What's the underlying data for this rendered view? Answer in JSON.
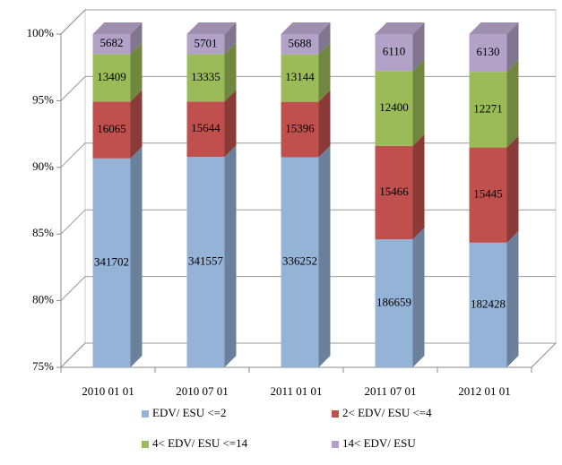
{
  "chart_data": {
    "type": "bar",
    "stacked": "percent",
    "categories": [
      "2010 01 01",
      "2010 07 01",
      "2011 01 01",
      "2011 07 01",
      "2012 01 01"
    ],
    "series": [
      {
        "name": "EDV/ ESU <=2",
        "color": "#95b3d7",
        "values": [
          341702,
          341557,
          336252,
          186659,
          182428
        ]
      },
      {
        "name": "2< EDV/ ESU <=4",
        "color": "#c0504d",
        "values": [
          16065,
          15644,
          15396,
          15466,
          15445
        ]
      },
      {
        "name": "4< EDV/ ESU <=14",
        "color": "#9bbb59",
        "values": [
          13409,
          13335,
          13144,
          12400,
          12271
        ]
      },
      {
        "name": "14< EDV/ ESU",
        "color": "#b3a2c7",
        "values": [
          5682,
          5701,
          5688,
          6110,
          6130
        ]
      }
    ],
    "ylim": [
      75,
      100
    ],
    "yticks": [
      {
        "value": 75,
        "label": "75%"
      },
      {
        "value": 80,
        "label": "80%"
      },
      {
        "value": 85,
        "label": "85%"
      },
      {
        "value": 90,
        "label": "90%"
      },
      {
        "value": 95,
        "label": "95%"
      },
      {
        "value": 100,
        "label": "100%"
      }
    ],
    "grid": true
  }
}
